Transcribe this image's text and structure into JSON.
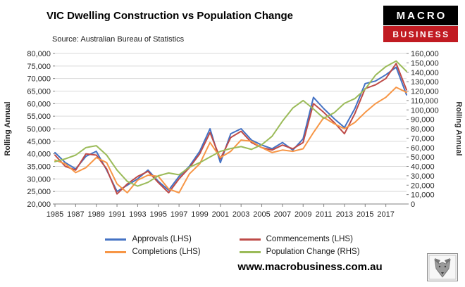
{
  "header": {
    "title": "VIC Dwelling Construction vs Population Change",
    "source": "Source: Australian Bureau of Statistics",
    "logo": {
      "line1": "MACRO",
      "line2": "BUSINESS",
      "top_bg": "#000000",
      "bottom_bg": "#c11b22"
    }
  },
  "chart_data": {
    "type": "line",
    "title": "VIC Dwelling Construction vs Population Change",
    "x": [
      1985,
      1986,
      1987,
      1988,
      1989,
      1990,
      1991,
      1992,
      1993,
      1994,
      1995,
      1996,
      1997,
      1998,
      1999,
      2000,
      2001,
      2002,
      2003,
      2004,
      2005,
      2006,
      2007,
      2008,
      2009,
      2010,
      2011,
      2012,
      2013,
      2014,
      2015,
      2016,
      2017,
      2018,
      2019
    ],
    "series": [
      {
        "name": "Approvals (LHS)",
        "axis": "left",
        "color": "#4472C4",
        "values": [
          40500,
          36500,
          34000,
          39000,
          41000,
          33500,
          25000,
          27500,
          30000,
          33500,
          29000,
          25500,
          31000,
          35000,
          41000,
          50000,
          36500,
          48000,
          50000,
          45500,
          43500,
          42000,
          44500,
          41500,
          46000,
          62500,
          58000,
          54000,
          50500,
          58000,
          68000,
          69000,
          71500,
          74500,
          63500
        ]
      },
      {
        "name": "Commencements (LHS)",
        "axis": "left",
        "color": "#BE4B48",
        "values": [
          39500,
          35000,
          33500,
          40000,
          39500,
          34000,
          24000,
          28000,
          31000,
          33000,
          28500,
          24500,
          30000,
          34500,
          40000,
          48500,
          38000,
          46500,
          49000,
          44500,
          42500,
          41500,
          43500,
          42000,
          44500,
          60000,
          56500,
          52500,
          48000,
          56000,
          66000,
          67500,
          70000,
          76000,
          65500
        ]
      },
      {
        "name": "Completions (LHS)",
        "axis": "left",
        "color": "#F79646",
        "values": [
          37500,
          36000,
          32500,
          34500,
          38500,
          36500,
          28000,
          24500,
          29500,
          31500,
          31000,
          26000,
          24500,
          32000,
          36000,
          44500,
          38500,
          41000,
          45500,
          45000,
          42500,
          40500,
          41500,
          41000,
          42000,
          48500,
          54500,
          52000,
          50000,
          52500,
          56500,
          60000,
          62500,
          66500,
          64500
        ]
      },
      {
        "name": "Population Change (RHS)",
        "axis": "right",
        "color": "#9BBB59",
        "values": [
          45000,
          48000,
          52000,
          60000,
          62000,
          52000,
          36000,
          24000,
          19000,
          23000,
          30000,
          33000,
          31000,
          39000,
          44000,
          50000,
          56000,
          59000,
          61000,
          58000,
          63000,
          72000,
          88000,
          102000,
          110000,
          101000,
          91000,
          97000,
          107000,
          112000,
          122000,
          137000,
          146000,
          152000,
          141000
        ]
      }
    ],
    "left_axis": {
      "label": "Rolling Annual",
      "min": 20000,
      "max": 80000,
      "step": 5000
    },
    "right_axis": {
      "label": "Rolling Annual",
      "min": 0,
      "max": 160000,
      "step": 10000
    },
    "x_axis": {
      "tick_start": 1985,
      "tick_step": 2,
      "tick_end": 2017
    },
    "grid": true,
    "legend_position": "bottom"
  },
  "footer": {
    "url": "www.macrobusiness.com.au"
  }
}
